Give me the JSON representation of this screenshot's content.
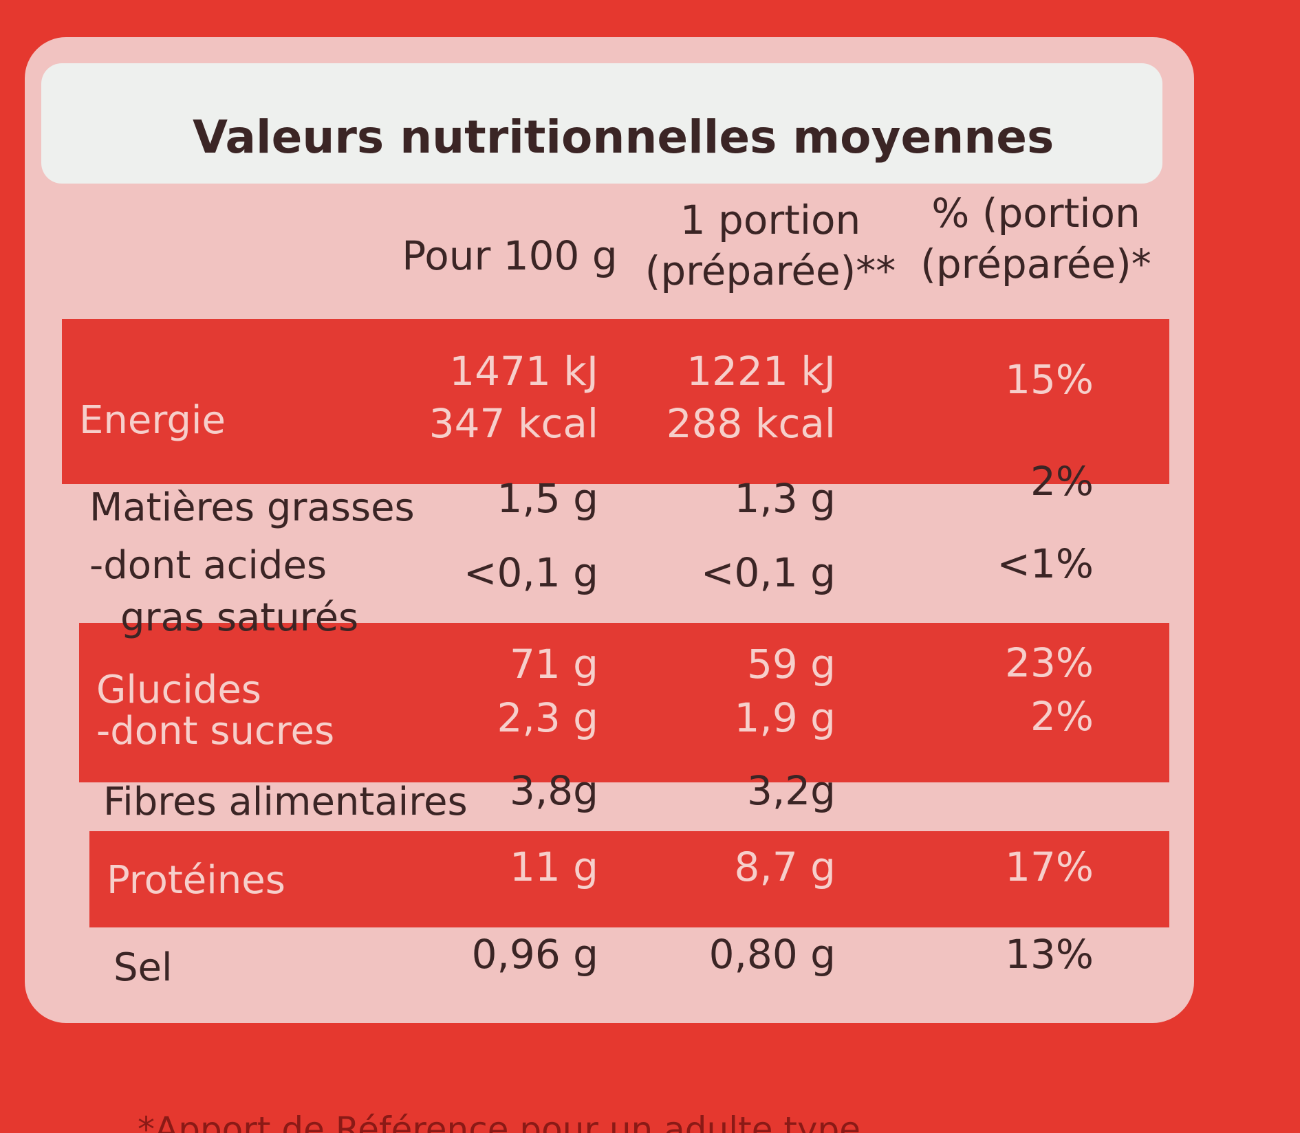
{
  "label": {
    "title": "Valeurs nutritionnelles moyennes",
    "columns": [
      [
        "Pour 100 g"
      ],
      [
        "1 portion",
        "(préparée)**"
      ],
      [
        "% (portion",
        "(préparée)*"
      ]
    ],
    "rows": [
      {
        "label": [
          "Energie"
        ],
        "cells": [
          [
            "1471 kJ",
            "347 kcal"
          ],
          [
            "1221 kJ",
            "288 kcal"
          ],
          [
            "15%"
          ]
        ]
      },
      {
        "label": [
          "Matières grasses"
        ],
        "cells": [
          [
            "1,5 g"
          ],
          [
            "1,3 g"
          ],
          [
            "2%"
          ]
        ]
      },
      {
        "label": [
          "-dont acides",
          "gras saturés"
        ],
        "cells": [
          [
            "<0,1 g"
          ],
          [
            "<0,1 g"
          ],
          [
            "<1%"
          ]
        ]
      },
      {
        "label": [
          "Glucides"
        ],
        "cells": [
          [
            "71 g"
          ],
          [
            "59 g"
          ],
          [
            "23%"
          ]
        ]
      },
      {
        "label": [
          "-dont sucres"
        ],
        "cells": [
          [
            "2,3 g"
          ],
          [
            "1,9 g"
          ],
          [
            "2%"
          ]
        ]
      },
      {
        "label": [
          "Fibres alimentaires"
        ],
        "cells": [
          [
            "3,8g"
          ],
          [
            "3,2g"
          ]
        ]
      },
      {
        "label": [
          "Protéines"
        ],
        "cells": [
          [
            "11 g"
          ],
          [
            "8,7 g"
          ],
          [
            "17%"
          ]
        ]
      },
      {
        "label": [
          "Sel"
        ],
        "cells": [
          [
            "0,96 g"
          ],
          [
            "0,80 g"
          ],
          [
            "13%"
          ]
        ]
      }
    ],
    "footnote": "*Apport de Référence pour un adulte type"
  }
}
